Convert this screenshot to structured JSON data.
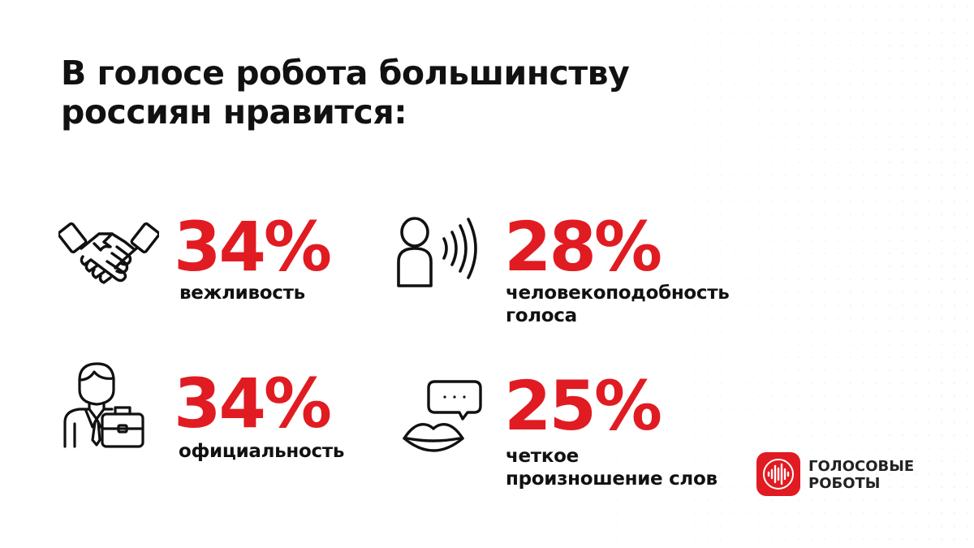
{
  "title": {
    "line1": "В голосе робота большинству",
    "line2": "россиян нравится:"
  },
  "stats": [
    {
      "icon": "handshake-icon",
      "value": "34%",
      "label_lines": [
        "вежливость"
      ]
    },
    {
      "icon": "person-speaking-icon",
      "value": "28%",
      "label_lines": [
        "человекоподобность",
        "голоса"
      ]
    },
    {
      "icon": "businessman-briefcase-icon",
      "value": "34%",
      "label_lines": [
        "официальность"
      ]
    },
    {
      "icon": "lips-speech-bubble-icon",
      "value": "25%",
      "label_lines": [
        "четкое",
        "произношение слов"
      ]
    }
  ],
  "brand": {
    "icon": "sound-wave-icon",
    "line1": "ГОЛОСОВЫЕ",
    "line2": "РОБОТЫ",
    "color": "#e11b22"
  },
  "colors": {
    "accent": "#e11b22",
    "text": "#111111",
    "background": "#ffffff"
  }
}
